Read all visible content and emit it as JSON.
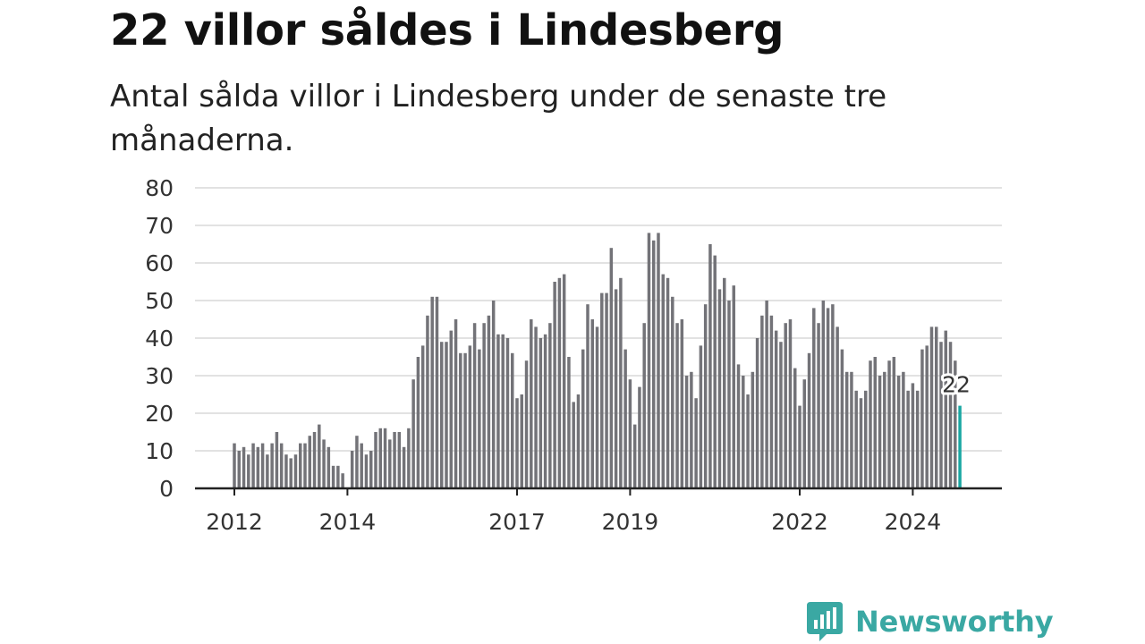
{
  "title": "22 villor såldes i Lindesberg",
  "subtitle": "Antal sålda villor i Lindesberg under de senaste tre månaderna.",
  "brand": {
    "name": "Newsworthy",
    "icon": "newsworthy-logo-icon",
    "color": "#3aa8a3"
  },
  "chart_data": {
    "type": "bar",
    "title": "22 villor såldes i Lindesberg",
    "subtitle": "Antal sålda villor i Lindesberg under de senaste tre månaderna.",
    "xlabel": "",
    "ylabel": "",
    "x_start": "2012-01",
    "x_ticks": [
      "2012",
      "2014",
      "2017",
      "2019",
      "2022",
      "2024"
    ],
    "y_ticks": [
      0,
      10,
      20,
      30,
      40,
      50,
      60,
      70,
      80
    ],
    "ylim": [
      0,
      80
    ],
    "grid": true,
    "bar_color": "#737378",
    "highlight_color": "#1aa7a3",
    "highlight_label": "22",
    "values": [
      12,
      10,
      11,
      9,
      12,
      11,
      12,
      9,
      12,
      15,
      12,
      9,
      8,
      9,
      12,
      12,
      14,
      15,
      17,
      13,
      11,
      6,
      6,
      4,
      0,
      10,
      14,
      12,
      9,
      10,
      15,
      16,
      16,
      13,
      15,
      15,
      11,
      16,
      29,
      35,
      38,
      46,
      51,
      51,
      39,
      39,
      42,
      45,
      36,
      36,
      38,
      44,
      37,
      44,
      46,
      50,
      41,
      41,
      40,
      36,
      24,
      25,
      34,
      45,
      43,
      40,
      41,
      44,
      55,
      56,
      57,
      35,
      23,
      25,
      37,
      49,
      45,
      43,
      52,
      52,
      64,
      53,
      56,
      37,
      29,
      17,
      27,
      44,
      68,
      66,
      68,
      57,
      56,
      51,
      44,
      45,
      30,
      31,
      24,
      38,
      49,
      65,
      62,
      53,
      56,
      50,
      54,
      33,
      30,
      25,
      31,
      40,
      46,
      50,
      46,
      42,
      39,
      44,
      45,
      32,
      22,
      29,
      36,
      48,
      44,
      50,
      48,
      49,
      43,
      37,
      31,
      31,
      26,
      24,
      26,
      34,
      35,
      30,
      31,
      34,
      35,
      30,
      31,
      26,
      28,
      26,
      37,
      38,
      43,
      43,
      39,
      42,
      39,
      34,
      22
    ]
  }
}
